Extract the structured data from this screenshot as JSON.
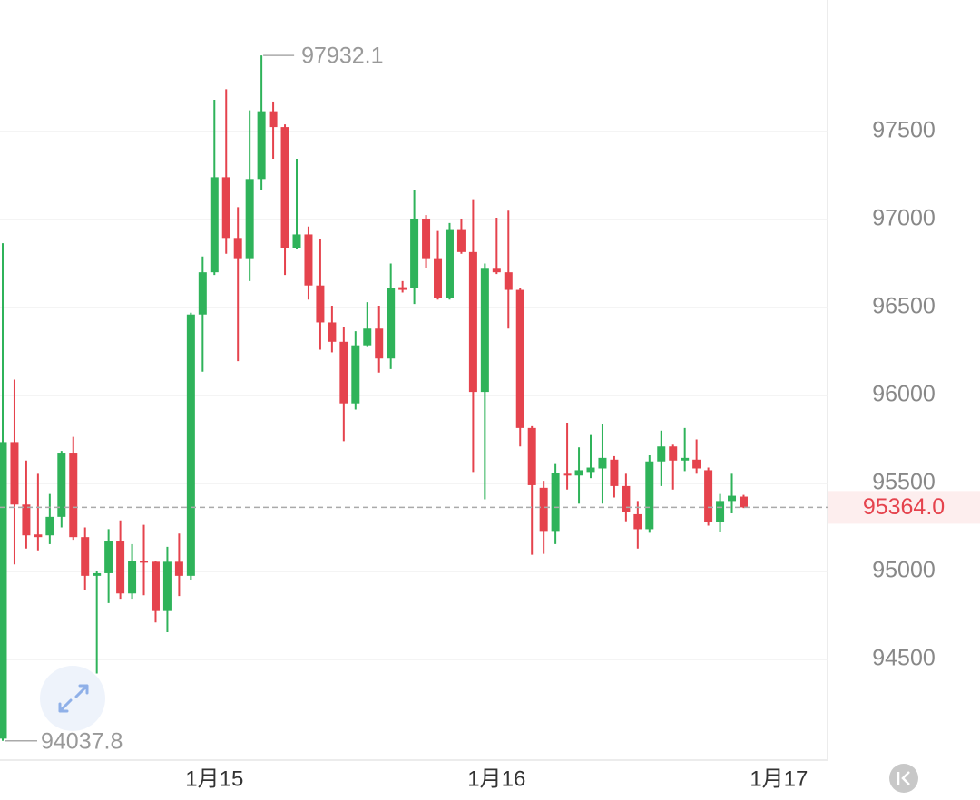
{
  "chart_data": {
    "type": "candlestick",
    "categories": [
      null,
      null,
      null,
      null,
      null,
      null,
      null,
      null,
      null,
      null,
      null,
      null,
      null,
      null,
      null,
      null,
      null,
      null,
      "1月15",
      null,
      null,
      null,
      null,
      null,
      null,
      null,
      null,
      null,
      null,
      null,
      null,
      null,
      null,
      null,
      null,
      null,
      null,
      null,
      null,
      null,
      null,
      null,
      "1月16",
      null,
      null,
      null,
      null,
      null,
      null,
      null,
      null,
      null,
      null,
      null,
      null,
      null,
      null,
      null,
      null,
      null,
      null,
      null,
      null,
      null,
      null,
      null,
      "1月17",
      null,
      null,
      null
    ],
    "open": [
      94050,
      95735,
      95380,
      95210,
      95205,
      95310,
      95675,
      95195,
      94975,
      94990,
      95170,
      94875,
      95060,
      95055,
      94775,
      95055,
      94975,
      96460,
      96700,
      97240,
      96895,
      96780,
      97230,
      97615,
      97525,
      96840,
      96915,
      96625,
      96415,
      96305,
      95955,
      96285,
      96380,
      96210,
      96615,
      96610,
      97005,
      96780,
      96555,
      96940,
      96815,
      96020,
      96720,
      96700,
      96600,
      95815,
      95475,
      95230,
      95555,
      95545,
      95565,
      95585,
      95635,
      95485,
      95325,
      95240,
      95625,
      95710,
      95630,
      95635,
      95575,
      95280,
      95400,
      95425,
      null,
      null,
      null,
      null,
      null,
      null
    ],
    "high": [
      96865,
      96090,
      95630,
      95555,
      95440,
      95685,
      95765,
      95250,
      95000,
      95240,
      95290,
      95155,
      95265,
      95060,
      95140,
      95215,
      96470,
      96790,
      97680,
      97740,
      97070,
      97620,
      97932.1,
      97670,
      97540,
      97345,
      96960,
      96890,
      96510,
      96390,
      96365,
      96530,
      96510,
      96750,
      96650,
      97165,
      97025,
      96935,
      96980,
      97005,
      97115,
      96750,
      97010,
      97050,
      96610,
      95825,
      95515,
      95610,
      95845,
      95705,
      95775,
      95835,
      95655,
      95555,
      95400,
      95660,
      95800,
      95720,
      95815,
      95750,
      95590,
      95440,
      95555,
      95435,
      null,
      null,
      null,
      null,
      null,
      null
    ],
    "low": [
      94037.8,
      95040,
      95130,
      95120,
      95155,
      95250,
      95180,
      94895,
      94420,
      94820,
      94845,
      94845,
      94865,
      94710,
      94655,
      94860,
      94950,
      96135,
      96685,
      96805,
      96195,
      96650,
      97165,
      97345,
      96685,
      96830,
      96545,
      96260,
      96245,
      95740,
      95920,
      96275,
      96130,
      96150,
      96585,
      96520,
      96725,
      96545,
      96545,
      96805,
      95565,
      95410,
      96690,
      96380,
      95710,
      95095,
      95100,
      95155,
      95465,
      95385,
      95530,
      95385,
      95420,
      95285,
      95130,
      95220,
      95485,
      95465,
      95570,
      95555,
      95260,
      95225,
      95330,
      95360,
      null,
      null,
      null,
      null,
      null,
      null
    ],
    "close": [
      95735,
      95380,
      95205,
      95195,
      95310,
      95675,
      95195,
      94975,
      94990,
      95170,
      94875,
      95060,
      95050,
      94775,
      95055,
      94975,
      96460,
      96700,
      97240,
      96895,
      96780,
      97230,
      97615,
      97525,
      96840,
      96915,
      96625,
      96415,
      96305,
      95955,
      96285,
      96380,
      96210,
      96610,
      96600,
      97005,
      96780,
      96555,
      96940,
      96815,
      96020,
      96720,
      96700,
      96600,
      95815,
      95490,
      95230,
      95560,
      95545,
      95575,
      95590,
      95645,
      95485,
      95335,
      95240,
      95625,
      95710,
      95630,
      95645,
      95585,
      95280,
      95400,
      95430,
      95364,
      null,
      null,
      null,
      null,
      null,
      null
    ],
    "last_price": {
      "value": 95364,
      "label": "95364.0"
    },
    "up_color": "#2fb35a",
    "down_color": "#e5434d",
    "ylim": [
      93928,
      98247
    ],
    "yticks": [
      94500,
      95000,
      95500,
      96000,
      96500,
      97000,
      97500
    ],
    "grid": true
  }
}
